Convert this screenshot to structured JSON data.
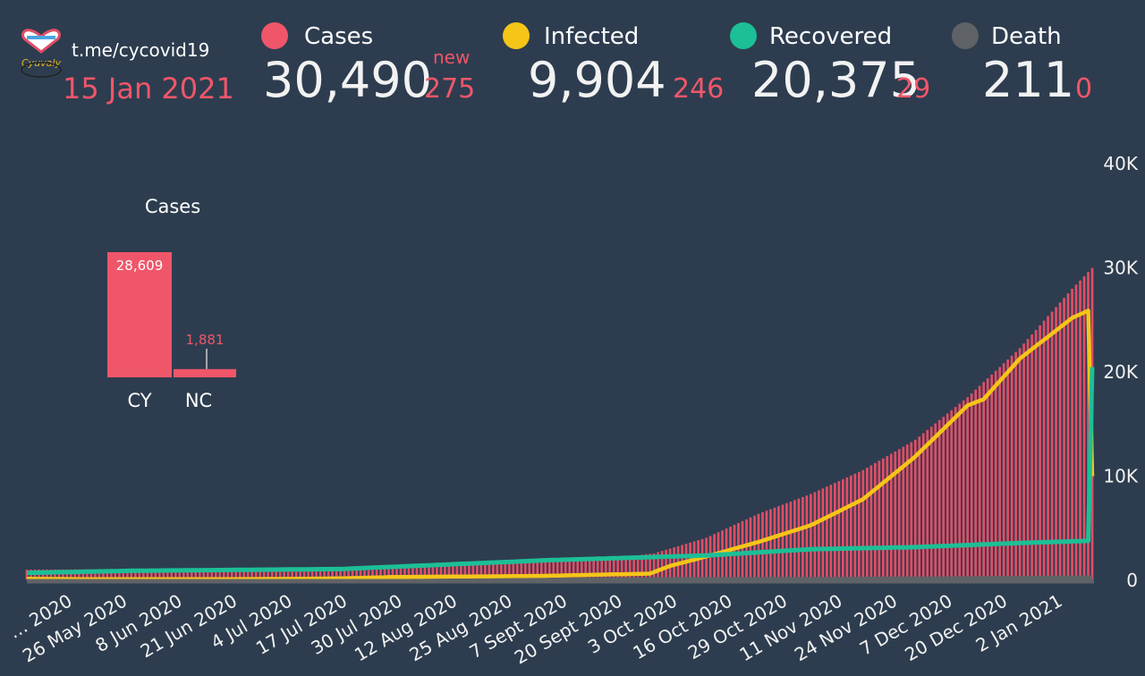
{
  "header": {
    "link": "t.me/cycovid19",
    "date": "15 Jan 2021",
    "new_label": "new",
    "stats": [
      {
        "label": "Cases",
        "value": "30,490",
        "delta": "275",
        "color": "#f0566a"
      },
      {
        "label": "Infected",
        "value": "9,904",
        "delta": "246",
        "color": "#f5c518"
      },
      {
        "label": "Recovered",
        "value": "20,375",
        "delta": "29",
        "color": "#1cbf96"
      },
      {
        "label": "Death",
        "value": "211",
        "delta": "0",
        "color": "#5f6266"
      }
    ]
  },
  "inset": {
    "title": "Cases",
    "bars": [
      {
        "label": "CY",
        "value": 28609,
        "text": "28,609"
      },
      {
        "label": "NC",
        "value": 1881,
        "text": "1,881"
      }
    ]
  },
  "chart_data": {
    "type": "bar",
    "x_ticks": [
      "… 2020",
      "26 May 2020",
      "8 Jun 2020",
      "21 Jun 2020",
      "4 Jul 2020",
      "17 Jul 2020",
      "30 Jul 2020",
      "12 Aug 2020",
      "25 Aug 2020",
      "7 Sept 2020",
      "20 Sept 2020",
      "3 Oct 2020",
      "16 Oct 2020",
      "29 Oct 2020",
      "11 Nov 2020",
      "24 Nov 2020",
      "7 Dec 2020",
      "20 Dec 2020",
      "2 Jan 2021"
    ],
    "y_ticks": [
      "0",
      "10K",
      "20K",
      "30K",
      "40K"
    ],
    "ylim": [
      0,
      40000
    ],
    "anchors": {
      "cases": [
        [
          0,
          940
        ],
        [
          13,
          960
        ],
        [
          26,
          990
        ],
        [
          39,
          1010
        ],
        [
          52,
          1040
        ],
        [
          65,
          1100
        ],
        [
          78,
          1200
        ],
        [
          91,
          1280
        ],
        [
          104,
          1450
        ],
        [
          117,
          1560
        ],
        [
          130,
          1700
        ],
        [
          143,
          1930
        ],
        [
          156,
          2500
        ],
        [
          169,
          4000
        ],
        [
          182,
          6300
        ],
        [
          195,
          8200
        ],
        [
          208,
          10500
        ],
        [
          221,
          13400
        ],
        [
          234,
          17500
        ],
        [
          247,
          22200
        ],
        [
          260,
          27900
        ],
        [
          265,
          29900
        ]
      ],
      "infected": [
        [
          0,
          60
        ],
        [
          13,
          30
        ],
        [
          26,
          25
        ],
        [
          39,
          20
        ],
        [
          52,
          30
        ],
        [
          65,
          50
        ],
        [
          78,
          100
        ],
        [
          91,
          230
        ],
        [
          104,
          270
        ],
        [
          117,
          300
        ],
        [
          130,
          350
        ],
        [
          143,
          460
        ],
        [
          155,
          560
        ],
        [
          160,
          1300
        ],
        [
          169,
          2200
        ],
        [
          182,
          3600
        ],
        [
          195,
          5200
        ],
        [
          208,
          7700
        ],
        [
          221,
          11800
        ],
        [
          234,
          16700
        ],
        [
          238,
          17300
        ],
        [
          247,
          21200
        ],
        [
          260,
          25100
        ],
        [
          264,
          25800
        ],
        [
          265,
          9904
        ]
      ],
      "recovered": [
        [
          0,
          630
        ],
        [
          26,
          830
        ],
        [
          78,
          1000
        ],
        [
          130,
          1850
        ],
        [
          169,
          2300
        ],
        [
          195,
          2900
        ],
        [
          208,
          3000
        ],
        [
          221,
          3100
        ],
        [
          234,
          3300
        ],
        [
          247,
          3500
        ],
        [
          264,
          3700
        ],
        [
          265,
          20375
        ]
      ],
      "deaths": [
        [
          0,
          20
        ],
        [
          130,
          35
        ],
        [
          195,
          60
        ],
        [
          234,
          130
        ],
        [
          265,
          211
        ]
      ]
    },
    "series_colors": {
      "cases": "#e04e66",
      "infected": "#f5c518",
      "recovered": "#1cbf96",
      "deaths": "#5f6266"
    }
  }
}
